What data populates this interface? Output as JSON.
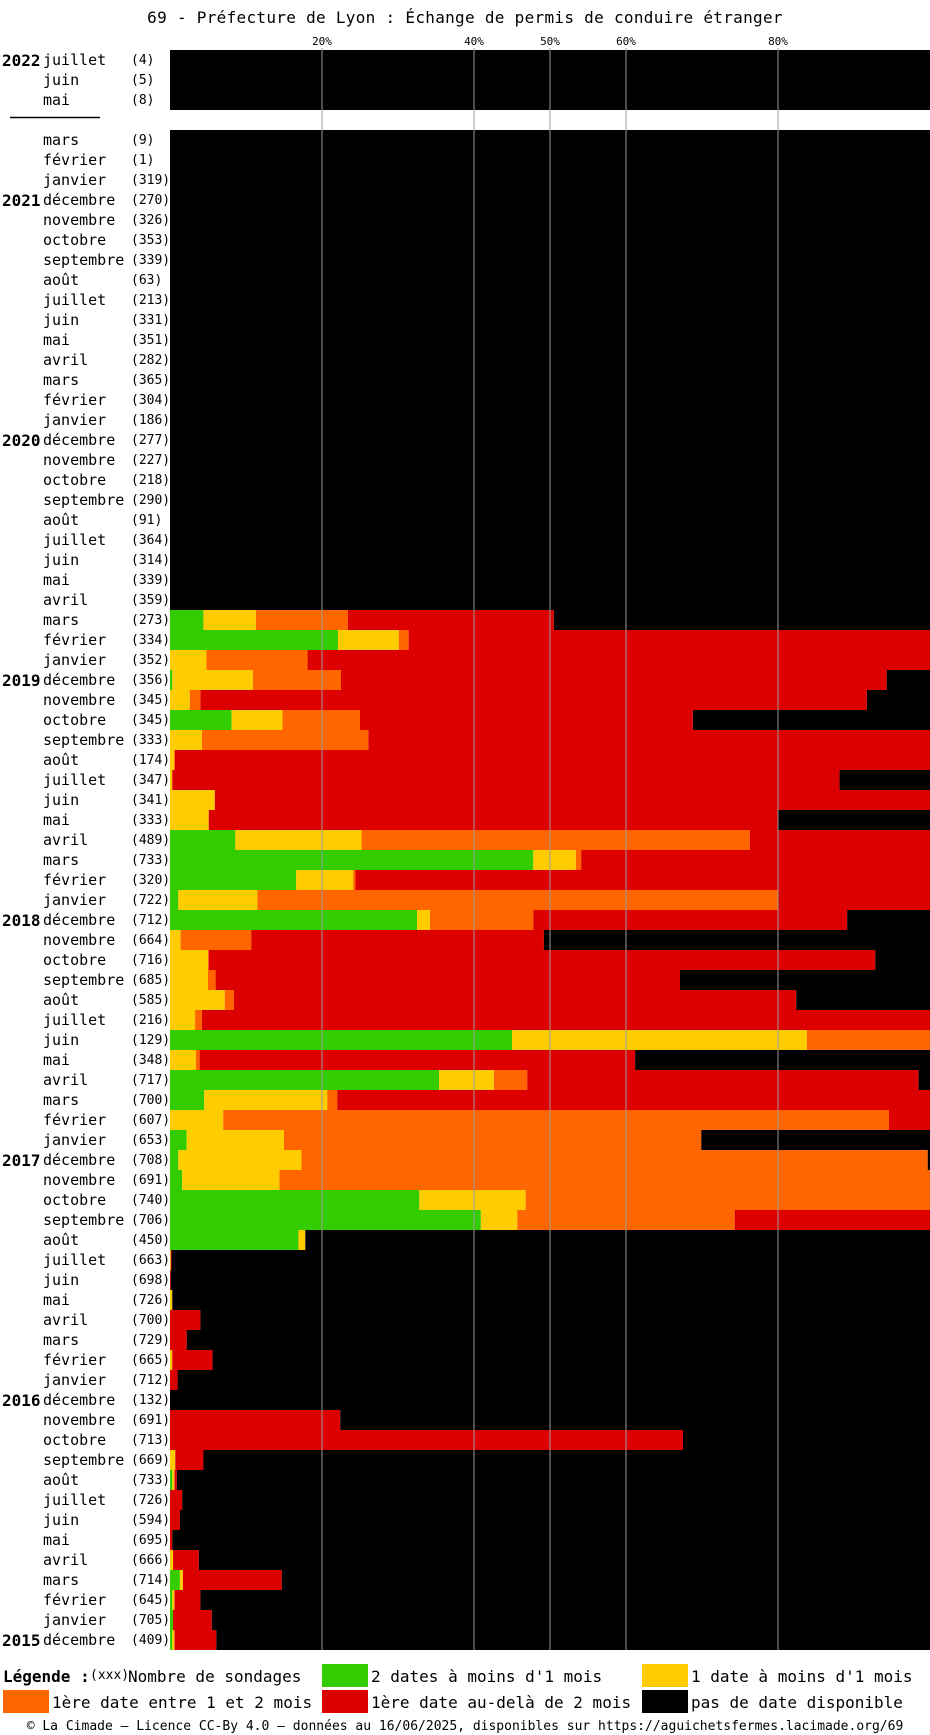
{
  "title": "69 - Préfecture de Lyon : Échange de permis de conduire étranger",
  "chart_data": {
    "type": "bar",
    "orientation": "horizontal",
    "stacked": true,
    "x_ticks": [
      "20%",
      "40%",
      "50%",
      "60%",
      "80%"
    ],
    "x_tick_values": [
      20,
      40,
      50,
      60,
      80
    ],
    "xlim": [
      0,
      100
    ],
    "grid": "vertical lines at tick values",
    "series": [
      {
        "key": "g",
        "color": "#33cc00"
      },
      {
        "key": "y",
        "color": "#ffcc00"
      },
      {
        "key": "o",
        "color": "#ff6600"
      },
      {
        "key": "r",
        "color": "#dd0000"
      },
      {
        "key": "b",
        "color": "#000000"
      }
    ],
    "groups": [
      {
        "rows": [
          {
            "year": "2022",
            "month": "juillet",
            "count": "(4)",
            "g": 0,
            "y": 0,
            "o": 0,
            "r": 0,
            "b": 100
          },
          {
            "year": "",
            "month": "juin",
            "count": "(5)",
            "g": 0,
            "y": 0,
            "o": 0,
            "r": 0,
            "b": 100
          },
          {
            "year": "",
            "month": "mai",
            "count": "(8)",
            "g": 0,
            "y": 0,
            "o": 0,
            "r": 0,
            "b": 100
          }
        ]
      },
      {
        "rows": [
          {
            "year": "",
            "month": "mars",
            "count": "(9)",
            "g": 0,
            "y": 0,
            "o": 0,
            "r": 0,
            "b": 100
          },
          {
            "year": "",
            "month": "février",
            "count": "(1)",
            "g": 0,
            "y": 0,
            "o": 0,
            "r": 0,
            "b": 100
          },
          {
            "year": "",
            "month": "janvier",
            "count": "(319)",
            "g": 0,
            "y": 0,
            "o": 0,
            "r": 0,
            "b": 100
          },
          {
            "year": "2021",
            "month": "décembre",
            "count": "(270)",
            "g": 0,
            "y": 0,
            "o": 0,
            "r": 0,
            "b": 100
          },
          {
            "year": "",
            "month": "novembre",
            "count": "(326)",
            "g": 0,
            "y": 0,
            "o": 0,
            "r": 0,
            "b": 100
          },
          {
            "year": "",
            "month": "octobre",
            "count": "(353)",
            "g": 0,
            "y": 0,
            "o": 0,
            "r": 0,
            "b": 100
          },
          {
            "year": "",
            "month": "septembre",
            "count": "(339)",
            "g": 0,
            "y": 0,
            "o": 0,
            "r": 0,
            "b": 100
          },
          {
            "year": "",
            "month": "août",
            "count": "(63)",
            "g": 0,
            "y": 0,
            "o": 0,
            "r": 0,
            "b": 100
          },
          {
            "year": "",
            "month": "juillet",
            "count": "(213)",
            "g": 0,
            "y": 0,
            "o": 0,
            "r": 0,
            "b": 100
          },
          {
            "year": "",
            "month": "juin",
            "count": "(331)",
            "g": 0,
            "y": 0,
            "o": 0,
            "r": 0,
            "b": 100
          },
          {
            "year": "",
            "month": "mai",
            "count": "(351)",
            "g": 0,
            "y": 0,
            "o": 0,
            "r": 0,
            "b": 100
          },
          {
            "year": "",
            "month": "avril",
            "count": "(282)",
            "g": 0,
            "y": 0,
            "o": 0,
            "r": 0,
            "b": 100
          },
          {
            "year": "",
            "month": "mars",
            "count": "(365)",
            "g": 0,
            "y": 0,
            "o": 0,
            "r": 0,
            "b": 100
          },
          {
            "year": "",
            "month": "février",
            "count": "(304)",
            "g": 0,
            "y": 0,
            "o": 0,
            "r": 0,
            "b": 100
          },
          {
            "year": "",
            "month": "janvier",
            "count": "(186)",
            "g": 0,
            "y": 0,
            "o": 0,
            "r": 0,
            "b": 100
          },
          {
            "year": "2020",
            "month": "décembre",
            "count": "(277)",
            "g": 0,
            "y": 0,
            "o": 0,
            "r": 0,
            "b": 100
          },
          {
            "year": "",
            "month": "novembre",
            "count": "(227)",
            "g": 0,
            "y": 0,
            "o": 0,
            "r": 0,
            "b": 100
          },
          {
            "year": "",
            "month": "octobre",
            "count": "(218)",
            "g": 0,
            "y": 0,
            "o": 0,
            "r": 0,
            "b": 100
          },
          {
            "year": "",
            "month": "septembre",
            "count": "(290)",
            "g": 0,
            "y": 0,
            "o": 0,
            "r": 0,
            "b": 100
          },
          {
            "year": "",
            "month": "août",
            "count": "(91)",
            "g": 0,
            "y": 0,
            "o": 0,
            "r": 0,
            "b": 100
          },
          {
            "year": "",
            "month": "juillet",
            "count": "(364)",
            "g": 0,
            "y": 0,
            "o": 0,
            "r": 0,
            "b": 100
          },
          {
            "year": "",
            "month": "juin",
            "count": "(314)",
            "g": 0,
            "y": 0,
            "o": 0,
            "r": 0,
            "b": 100
          },
          {
            "year": "",
            "month": "mai",
            "count": "(339)",
            "g": 0,
            "y": 0,
            "o": 0,
            "r": 0,
            "b": 100
          },
          {
            "year": "",
            "month": "avril",
            "count": "(359)",
            "g": 0,
            "y": 0,
            "o": 0,
            "r": 0,
            "b": 100
          },
          {
            "year": "",
            "month": "mars",
            "count": "(273)",
            "g": 4.4,
            "y": 6.9,
            "o": 12.1,
            "r": 27.1,
            "b": 49.5
          },
          {
            "year": "",
            "month": "février",
            "count": "(334)",
            "g": 22.1,
            "y": 8.0,
            "o": 1.3,
            "r": 68.6,
            "b": 0
          },
          {
            "year": "",
            "month": "janvier",
            "count": "(352)",
            "g": 0,
            "y": 4.8,
            "o": 13.3,
            "r": 81.9,
            "b": 0
          },
          {
            "year": "2019",
            "month": "décembre",
            "count": "(356)",
            "g": 0.3,
            "y": 10.6,
            "o": 11.6,
            "r": 71.8,
            "b": 5.7
          },
          {
            "year": "",
            "month": "novembre",
            "count": "(345)",
            "g": 0,
            "y": 2.6,
            "o": 1.4,
            "r": 87.7,
            "b": 8.3
          },
          {
            "year": "",
            "month": "octobre",
            "count": "(345)",
            "g": 8.1,
            "y": 6.7,
            "o": 10.2,
            "r": 43.8,
            "b": 31.2
          },
          {
            "year": "",
            "month": "septembre",
            "count": "(333)",
            "g": 0,
            "y": 4.2,
            "o": 21.9,
            "r": 73.9,
            "b": 0
          },
          {
            "year": "",
            "month": "août",
            "count": "(174)",
            "g": 0,
            "y": 0.6,
            "o": 0,
            "r": 99.4,
            "b": 0
          },
          {
            "year": "",
            "month": "juillet",
            "count": "(347)",
            "g": 0,
            "y": 0.3,
            "o": 0,
            "r": 87.8,
            "b": 11.9
          },
          {
            "year": "",
            "month": "juin",
            "count": "(341)",
            "g": 0,
            "y": 5.9,
            "o": 0,
            "r": 94.1,
            "b": 0
          },
          {
            "year": "",
            "month": "mai",
            "count": "(333)",
            "g": 0,
            "y": 5.1,
            "o": 0,
            "r": 74.9,
            "b": 20.0
          },
          {
            "year": "",
            "month": "avril",
            "count": "(489)",
            "g": 8.6,
            "y": 16.6,
            "o": 51.1,
            "r": 23.7,
            "b": 0
          },
          {
            "year": "",
            "month": "mars",
            "count": "(733)",
            "g": 47.8,
            "y": 5.6,
            "o": 0.7,
            "r": 45.9,
            "b": 0
          },
          {
            "year": "",
            "month": "février",
            "count": "(320)",
            "g": 16.6,
            "y": 7.5,
            "o": 0.3,
            "r": 75.6,
            "b": 0
          },
          {
            "year": "",
            "month": "janvier",
            "count": "(722)",
            "g": 1.1,
            "y": 10.4,
            "o": 68.5,
            "r": 20.0,
            "b": 0
          },
          {
            "year": "2018",
            "month": "décembre",
            "count": "(712)",
            "g": 32.5,
            "y": 1.7,
            "o": 13.6,
            "r": 41.3,
            "b": 10.9
          },
          {
            "year": "",
            "month": "novembre",
            "count": "(664)",
            "g": 0,
            "y": 1.4,
            "o": 9.3,
            "r": 38.5,
            "b": 50.8
          },
          {
            "year": "",
            "month": "octobre",
            "count": "(716)",
            "g": 0,
            "y": 5.0,
            "o": 0.1,
            "r": 87.7,
            "b": 7.2
          },
          {
            "year": "",
            "month": "septembre",
            "count": "(685)",
            "g": 0,
            "y": 5.0,
            "o": 1.0,
            "r": 61.1,
            "b": 32.9
          },
          {
            "year": "",
            "month": "août",
            "count": "(585)",
            "g": 0,
            "y": 7.2,
            "o": 1.2,
            "r": 74.0,
            "b": 17.6
          },
          {
            "year": "",
            "month": "juillet",
            "count": "(216)",
            "g": 0,
            "y": 3.3,
            "o": 0.9,
            "r": 95.8,
            "b": 0
          },
          {
            "year": "",
            "month": "juin",
            "count": "(129)",
            "g": 45.0,
            "y": 38.8,
            "o": 16.2,
            "r": 0,
            "b": 0
          },
          {
            "year": "",
            "month": "mai",
            "count": "(348)",
            "g": 0,
            "y": 3.4,
            "o": 0.5,
            "r": 57.3,
            "b": 38.8
          },
          {
            "year": "",
            "month": "avril",
            "count": "(717)",
            "g": 35.4,
            "y": 7.2,
            "o": 4.4,
            "r": 51.5,
            "b": 1.5
          },
          {
            "year": "",
            "month": "mars",
            "count": "(700)",
            "g": 4.5,
            "y": 16.2,
            "o": 1.3,
            "r": 78.0,
            "b": 0
          },
          {
            "year": "",
            "month": "février",
            "count": "(607)",
            "g": 0,
            "y": 7.0,
            "o": 87.6,
            "r": 5.4,
            "b": 0
          },
          {
            "year": "",
            "month": "janvier",
            "count": "(653)",
            "g": 2.2,
            "y": 12.8,
            "o": 54.9,
            "r": 0,
            "b": 30.1
          },
          {
            "year": "2017",
            "month": "décembre",
            "count": "(708)",
            "g": 1.1,
            "y": 16.2,
            "o": 82.4,
            "r": 0,
            "b": 0.3
          },
          {
            "year": "",
            "month": "novembre",
            "count": "(691)",
            "g": 1.6,
            "y": 12.8,
            "o": 85.6,
            "r": 0,
            "b": 0
          },
          {
            "year": "",
            "month": "octobre",
            "count": "(740)",
            "g": 32.8,
            "y": 14.0,
            "o": 53.2,
            "r": 0,
            "b": 0
          },
          {
            "year": "",
            "month": "septembre",
            "count": "(706)",
            "g": 40.9,
            "y": 4.8,
            "o": 28.6,
            "r": 25.7,
            "b": 0
          },
          {
            "year": "",
            "month": "août",
            "count": "(450)",
            "g": 16.9,
            "y": 0.9,
            "o": 0,
            "r": 0,
            "b": 82.2
          },
          {
            "year": "",
            "month": "juillet",
            "count": "(663)",
            "g": 0,
            "y": 0.1,
            "o": 0,
            "r": 0.1,
            "b": 99.8
          },
          {
            "year": "",
            "month": "juin",
            "count": "(698)",
            "g": 0,
            "y": 0,
            "o": 0,
            "r": 0.1,
            "b": 99.9
          },
          {
            "year": "",
            "month": "mai",
            "count": "(726)",
            "g": 0,
            "y": 0.3,
            "o": 0,
            "r": 0,
            "b": 99.7
          },
          {
            "year": "",
            "month": "avril",
            "count": "(700)",
            "g": 0,
            "y": 0,
            "o": 0,
            "r": 4.0,
            "b": 96.0
          },
          {
            "year": "",
            "month": "mars",
            "count": "(729)",
            "g": 0,
            "y": 0,
            "o": 0,
            "r": 2.2,
            "b": 97.8
          },
          {
            "year": "",
            "month": "février",
            "count": "(665)",
            "g": 0,
            "y": 0.3,
            "o": 0,
            "r": 5.3,
            "b": 94.4
          },
          {
            "year": "",
            "month": "janvier",
            "count": "(712)",
            "g": 0,
            "y": 0,
            "o": 0,
            "r": 1.0,
            "b": 99.0
          },
          {
            "year": "2016",
            "month": "décembre",
            "count": "(132)",
            "g": 0,
            "y": 0,
            "o": 0,
            "r": 0,
            "b": 100
          },
          {
            "year": "",
            "month": "novembre",
            "count": "(691)",
            "g": 0,
            "y": 0,
            "o": 0,
            "r": 22.4,
            "b": 77.6
          },
          {
            "year": "",
            "month": "octobre",
            "count": "(713)",
            "g": 0,
            "y": 0,
            "o": 0,
            "r": 67.5,
            "b": 32.5
          },
          {
            "year": "",
            "month": "septembre",
            "count": "(669)",
            "g": 0,
            "y": 0.7,
            "o": 0,
            "r": 3.7,
            "b": 95.6
          },
          {
            "year": "",
            "month": "août",
            "count": "(733)",
            "g": 0.3,
            "y": 0.3,
            "o": 0,
            "r": 0.3,
            "b": 99.1
          },
          {
            "year": "",
            "month": "juillet",
            "count": "(726)",
            "g": 0,
            "y": 0,
            "o": 0,
            "r": 1.6,
            "b": 98.4
          },
          {
            "year": "",
            "month": "juin",
            "count": "(594)",
            "g": 0,
            "y": 0,
            "o": 0,
            "r": 1.3,
            "b": 98.7
          },
          {
            "year": "",
            "month": "mai",
            "count": "(695)",
            "g": 0,
            "y": 0,
            "o": 0,
            "r": 0.3,
            "b": 99.7
          },
          {
            "year": "",
            "month": "avril",
            "count": "(666)",
            "g": 0,
            "y": 0.4,
            "o": 0,
            "r": 3.4,
            "b": 96.2
          },
          {
            "year": "",
            "month": "mars",
            "count": "(714)",
            "g": 1.3,
            "y": 0.4,
            "o": 0,
            "r": 13.0,
            "b": 85.3
          },
          {
            "year": "",
            "month": "février",
            "count": "(645)",
            "g": 0.3,
            "y": 0.3,
            "o": 0,
            "r": 3.4,
            "b": 96.0
          },
          {
            "year": "",
            "month": "janvier",
            "count": "(705)",
            "g": 0.4,
            "y": 0,
            "o": 0,
            "r": 5.1,
            "b": 94.5
          },
          {
            "year": "2015",
            "month": "décembre",
            "count": "(409)",
            "g": 0.3,
            "y": 0.3,
            "o": 0,
            "r": 5.5,
            "b": 93.9
          }
        ]
      }
    ]
  },
  "legend": {
    "title": "Légende :",
    "count_sample": "(xxx)",
    "count_label": "Nombre de sondages",
    "items": [
      {
        "label": "2 dates à moins d'1 mois",
        "color": "#33cc00"
      },
      {
        "label": "1 date à moins d'1 mois",
        "color": "#ffcc00"
      },
      {
        "label": "1ère date entre 1 et 2 mois",
        "color": "#ff6600"
      },
      {
        "label": "1ère date au-delà de 2 mois",
        "color": "#dd0000"
      },
      {
        "label": "pas de date disponible",
        "color": "#000000"
      }
    ]
  },
  "footer": "© La Cimade – Licence CC-By 4.0 – données au 16/06/2025, disponibles sur https://aguichetsfermes.lacimade.org/69"
}
